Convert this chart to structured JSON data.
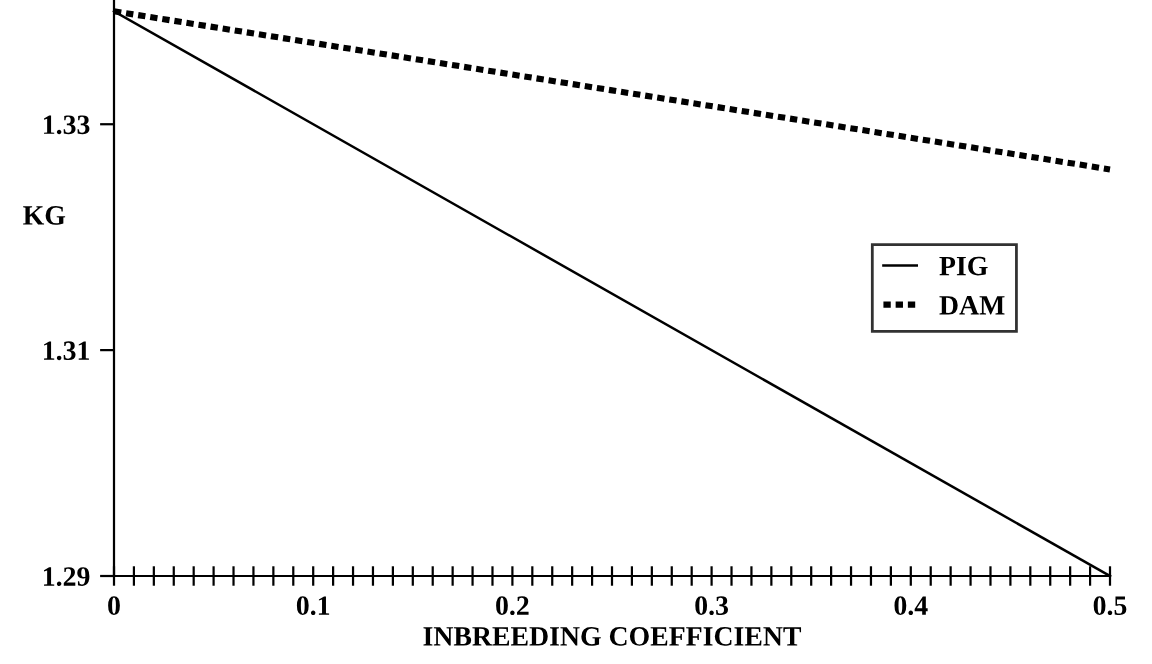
{
  "chart_data": {
    "type": "line",
    "xlabel": "INBREEDING COEFFICIENT",
    "ylabel": "KG",
    "x": [
      0,
      0.5
    ],
    "series": [
      {
        "name": "PIG",
        "color": "#000000",
        "values": [
          1.34,
          1.29
        ],
        "line_style": "solid"
      },
      {
        "name": "DAM",
        "color": "#000000",
        "values": [
          1.34,
          1.326
        ],
        "line_style": "dotted"
      }
    ],
    "xlim": [
      0,
      0.5
    ],
    "ylim": [
      1.29,
      1.341
    ],
    "xticks": [
      0,
      0.1,
      0.2,
      0.3,
      0.4,
      0.5
    ],
    "yticks": [
      1.29,
      1.31,
      1.33
    ],
    "grid": false,
    "legend": "right",
    "marker": "none"
  }
}
